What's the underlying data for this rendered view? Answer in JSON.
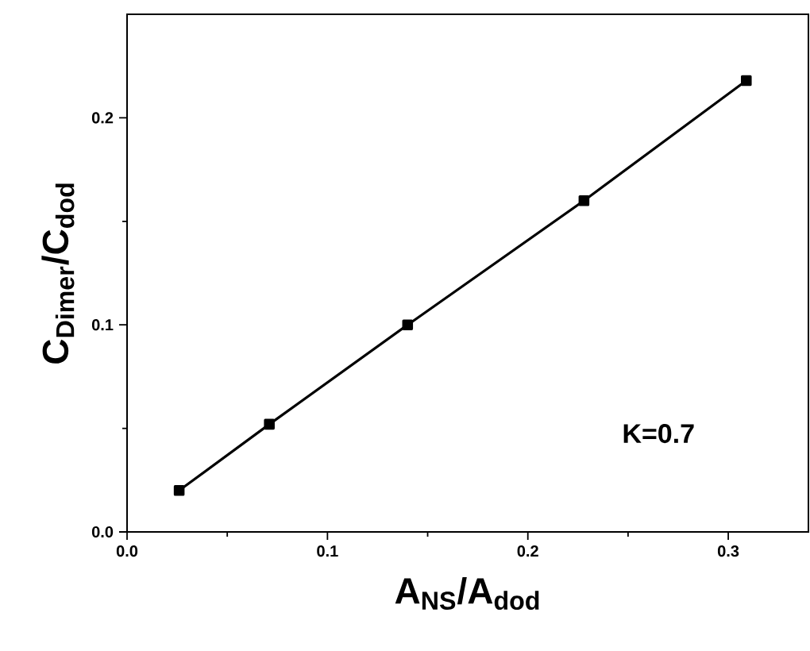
{
  "chart_data": {
    "type": "line",
    "xlabel": "A$_{NS}$/A$_{dod}$",
    "ylabel": "C$_{Dimer}$/C$_{dod}$",
    "annotations": [
      "K=0.7"
    ],
    "x": [
      0.026,
      0.071,
      0.14,
      0.228,
      0.309
    ],
    "series": [
      {
        "color": "#000000",
        "values": [
          0.02,
          0.052,
          0.1,
          0.16,
          0.218
        ]
      }
    ],
    "xlim": [
      0,
      0.34
    ],
    "ylim": [
      0,
      0.25
    ],
    "xticks": [
      {
        "value": 0,
        "label": "0.0"
      },
      0.1,
      0.2,
      0.3
    ],
    "yticks": [
      {
        "value": 0,
        "label": "0.0"
      },
      0.1,
      0.2
    ],
    "marker": "square",
    "line_style": "solid"
  }
}
